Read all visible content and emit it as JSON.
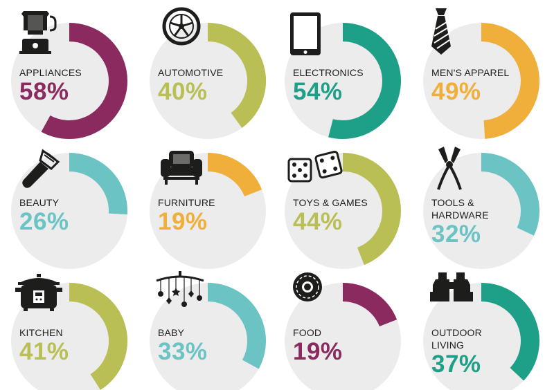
{
  "chart_data": {
    "type": "donut",
    "categories": [
      {
        "name": "APPLIANCES",
        "value": 58,
        "display": "58%",
        "color": "#8b2a5f",
        "icon": "blender-icon"
      },
      {
        "name": "AUTOMOTIVE",
        "value": 40,
        "display": "40%",
        "color": "#b9bf55",
        "icon": "wheel-icon"
      },
      {
        "name": "ELECTRONICS",
        "value": 54,
        "display": "54%",
        "color": "#1ea088",
        "icon": "tablet-icon"
      },
      {
        "name": "MEN'S APPAREL",
        "value": 49,
        "display": "49%",
        "color": "#f0ae3a",
        "icon": "necktie-icon"
      },
      {
        "name": "BEAUTY",
        "value": 26,
        "display": "26%",
        "color": "#6cc3c4",
        "icon": "brush-icon"
      },
      {
        "name": "FURNITURE",
        "value": 19,
        "display": "19%",
        "color": "#f0ae3a",
        "icon": "armchair-icon"
      },
      {
        "name": "TOYS & GAMES",
        "value": 44,
        "display": "44%",
        "color": "#b9bf55",
        "icon": "dice-icon"
      },
      {
        "name": "TOOLS & HARDWARE",
        "value": 32,
        "display": "32%",
        "color": "#6cc3c4",
        "icon": "pliers-icon"
      },
      {
        "name": "KITCHEN",
        "value": 41,
        "display": "41%",
        "color": "#b9bf55",
        "icon": "rice-cooker-icon"
      },
      {
        "name": "BABY",
        "value": 33,
        "display": "33%",
        "color": "#6cc3c4",
        "icon": "mobile-toy-icon"
      },
      {
        "name": "FOOD",
        "value": 19,
        "display": "19%",
        "color": "#8b2a5f",
        "icon": "donut-icon"
      },
      {
        "name": "OUTDOOR LIVING",
        "value": 37,
        "display": "37%",
        "color": "#1ea088",
        "icon": "binoculars-icon"
      }
    ],
    "track_color": "#ececec"
  },
  "label_lines": {
    "TOOLS & HARDWARE": [
      "TOOLS &",
      "HARDWARE"
    ],
    "OUTDOOR LIVING": [
      "OUTDOOR",
      "LIVING"
    ]
  }
}
